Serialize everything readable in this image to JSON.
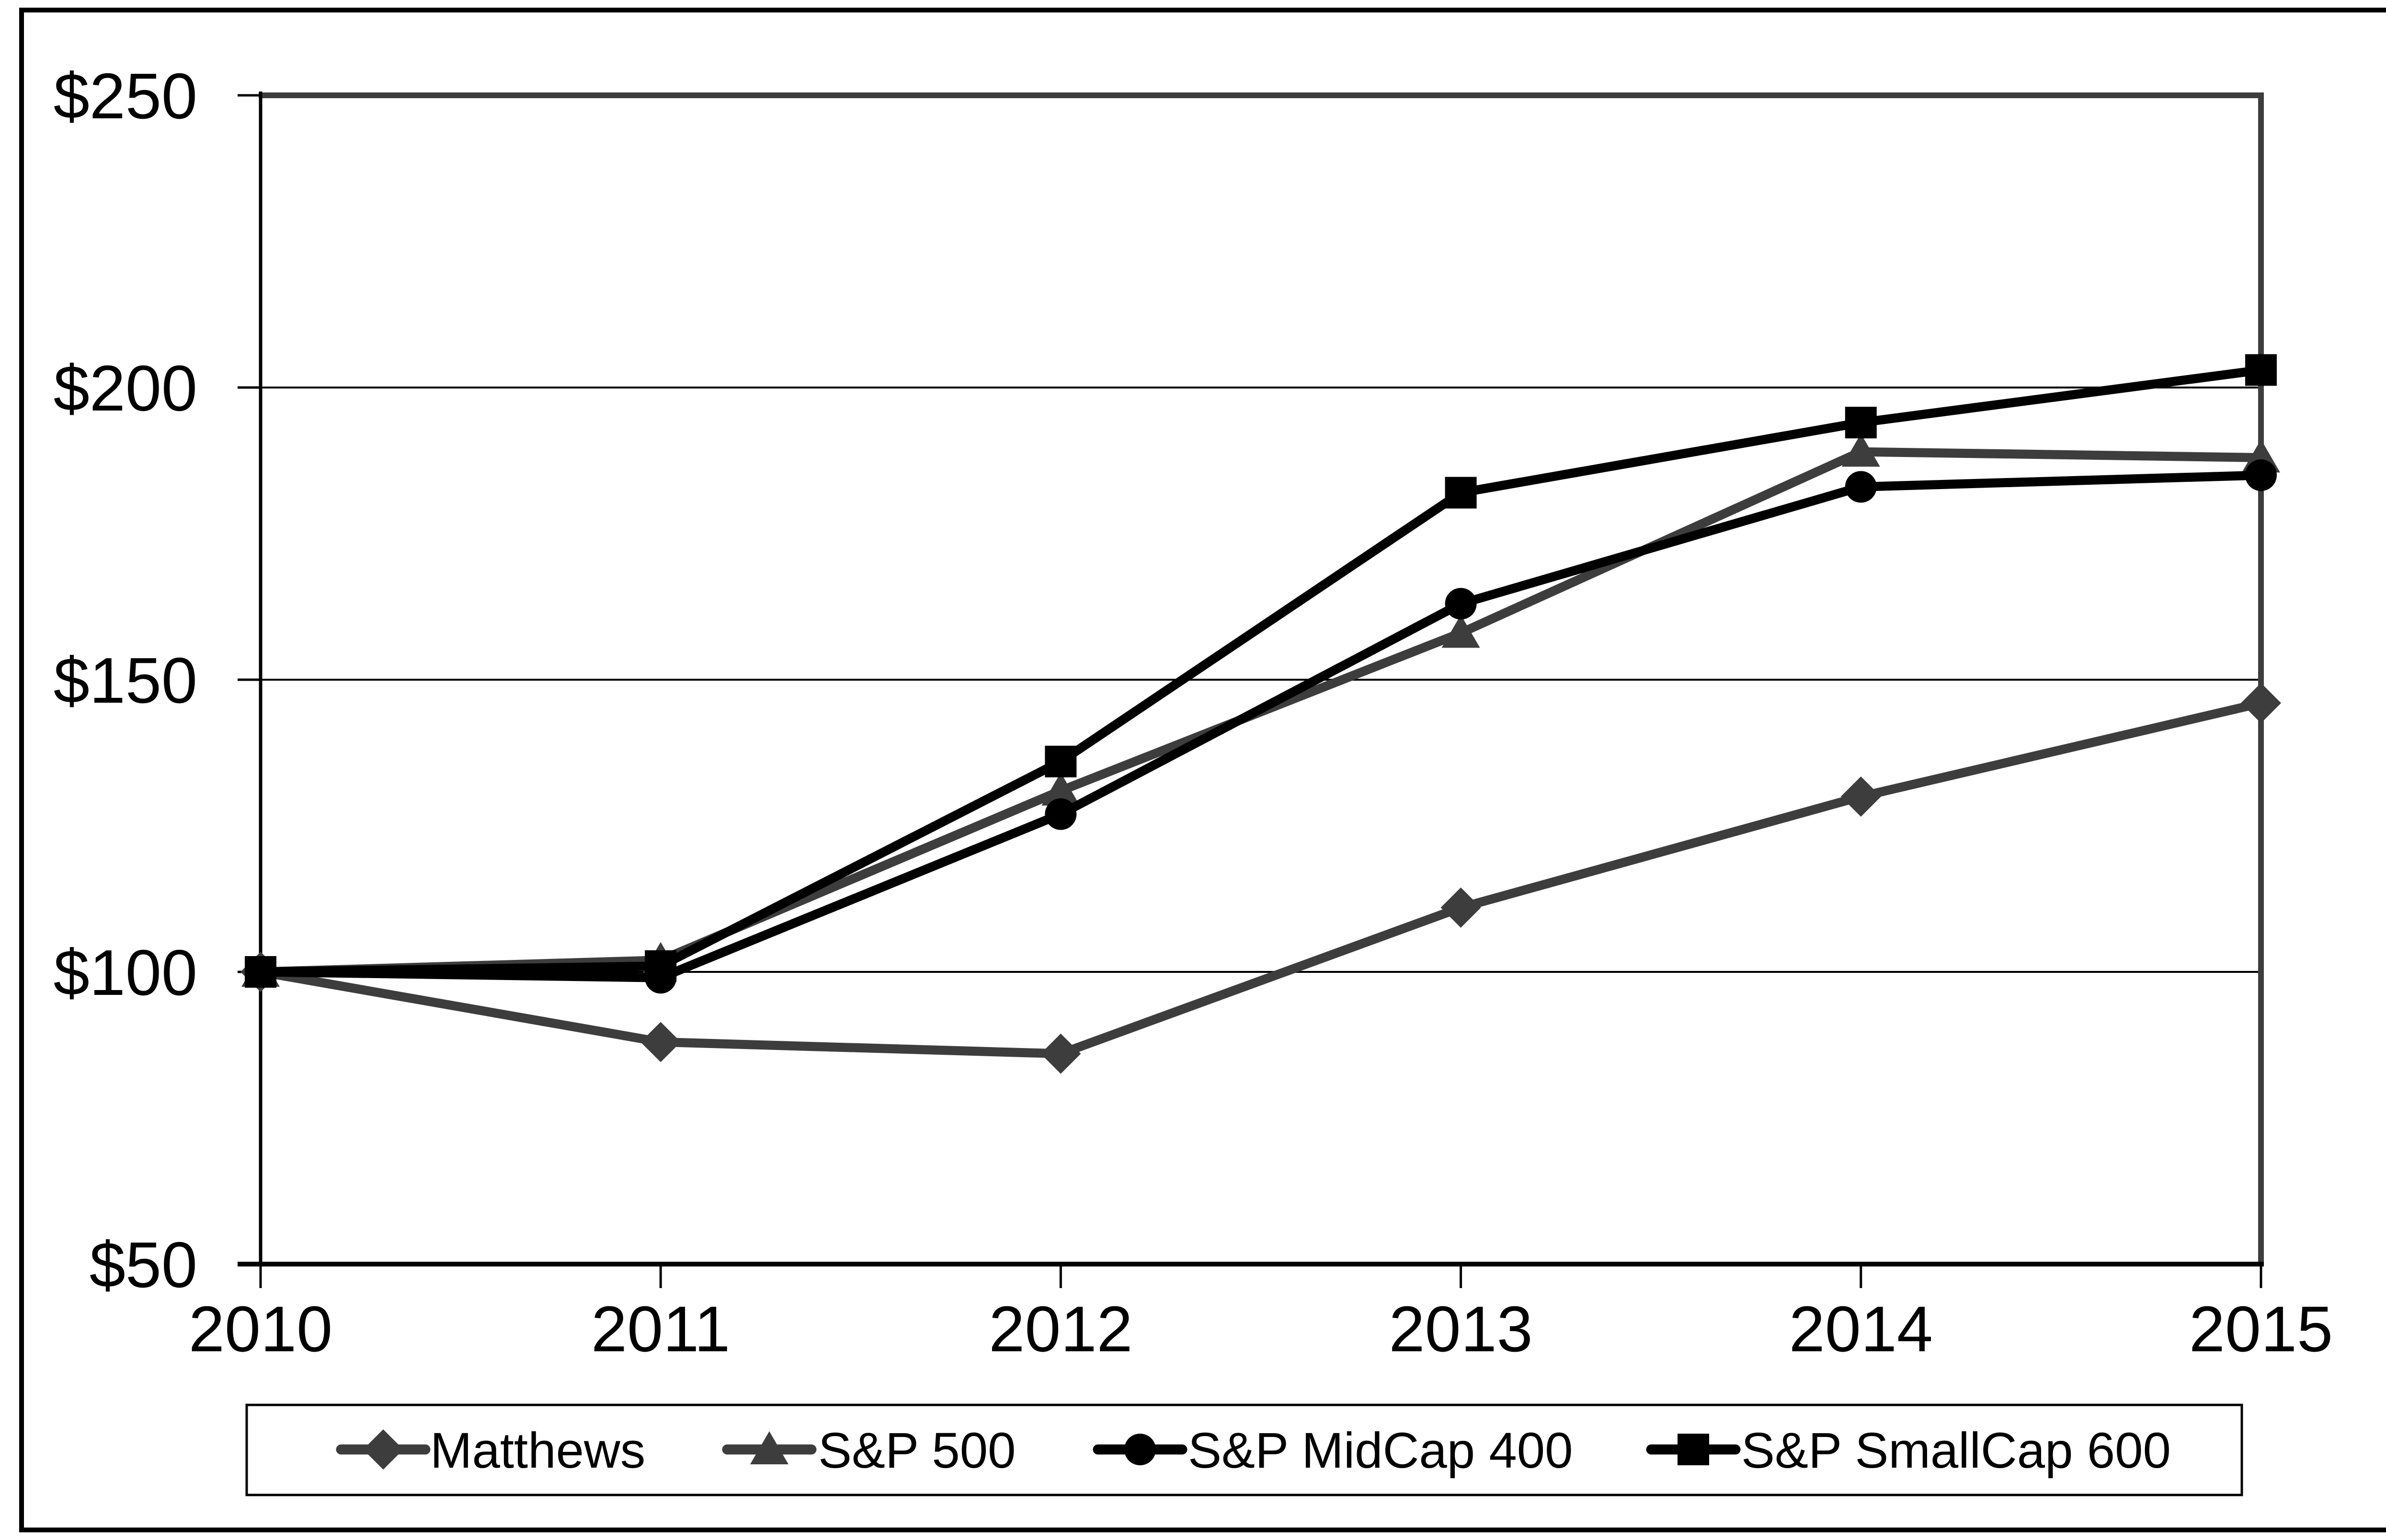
{
  "figure": {
    "background": "#ffffff",
    "frame_color": "#000000",
    "grid_color": "#000000",
    "border_accent_color": "#3d3d3d"
  },
  "chart_data": {
    "type": "line",
    "title": "",
    "xlabel": "",
    "ylabel": "",
    "x_labels": [
      "2010",
      "2011",
      "2012",
      "2013",
      "2014",
      "2015"
    ],
    "y_ticks": [
      "$250",
      "$200",
      "$150",
      "$100",
      "$50"
    ],
    "y_tick_values": [
      250,
      200,
      150,
      100,
      50
    ],
    "ylim": [
      50,
      250
    ],
    "grid": "horizontal",
    "legend_position": "bottom",
    "series": [
      {
        "name": "Matthews",
        "marker": "diamond",
        "color": "#3d3d3d",
        "values": [
          100,
          88,
          86,
          111,
          130,
          146
        ]
      },
      {
        "name": "S&P 500",
        "marker": "triangle",
        "color": "#3d3d3d",
        "values": [
          100,
          102,
          131,
          158,
          189,
          188
        ]
      },
      {
        "name": "S&P MidCap 400",
        "marker": "circle",
        "color": "#000000",
        "values": [
          100,
          99,
          127,
          163,
          183,
          185
        ]
      },
      {
        "name": "S&P SmallCap 600",
        "marker": "square",
        "color": "#000000",
        "values": [
          100,
          101,
          136,
          182,
          194,
          203
        ]
      }
    ]
  }
}
